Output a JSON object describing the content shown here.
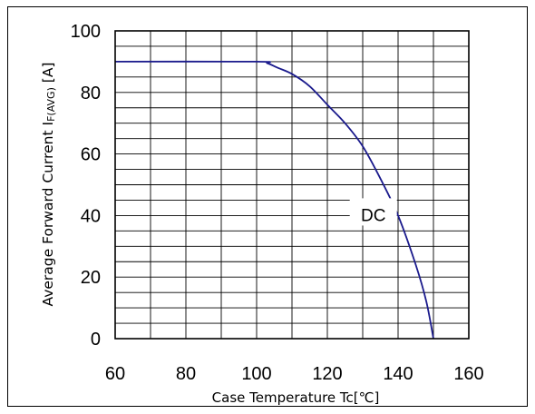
{
  "chart_data": {
    "type": "line",
    "xlabel": "Case Temperature  Tc[℃]",
    "ylabel_main": "Average Forward Current I",
    "ylabel_sub": "F(AVG)",
    "ylabel_unit": " [A]",
    "xlim": [
      60,
      160
    ],
    "ylim": [
      0,
      100
    ],
    "x_ticks": [
      60,
      80,
      100,
      120,
      140,
      160
    ],
    "y_ticks": [
      0,
      20,
      40,
      60,
      80,
      100
    ],
    "x_minor_step": 10,
    "y_minor_step": 5,
    "grid": true,
    "series": [
      {
        "name": "DC",
        "color": "#1a1a8c",
        "x": [
          60,
          100,
          103,
          106,
          110,
          115,
          120,
          125,
          130,
          135,
          140,
          145,
          148,
          150
        ],
        "y": [
          90,
          90,
          89.5,
          88,
          86,
          82,
          76,
          70,
          62.5,
          52,
          40,
          24,
          12,
          0
        ]
      }
    ],
    "annotation": {
      "text": "DC",
      "x": 133,
      "y": 40
    }
  }
}
